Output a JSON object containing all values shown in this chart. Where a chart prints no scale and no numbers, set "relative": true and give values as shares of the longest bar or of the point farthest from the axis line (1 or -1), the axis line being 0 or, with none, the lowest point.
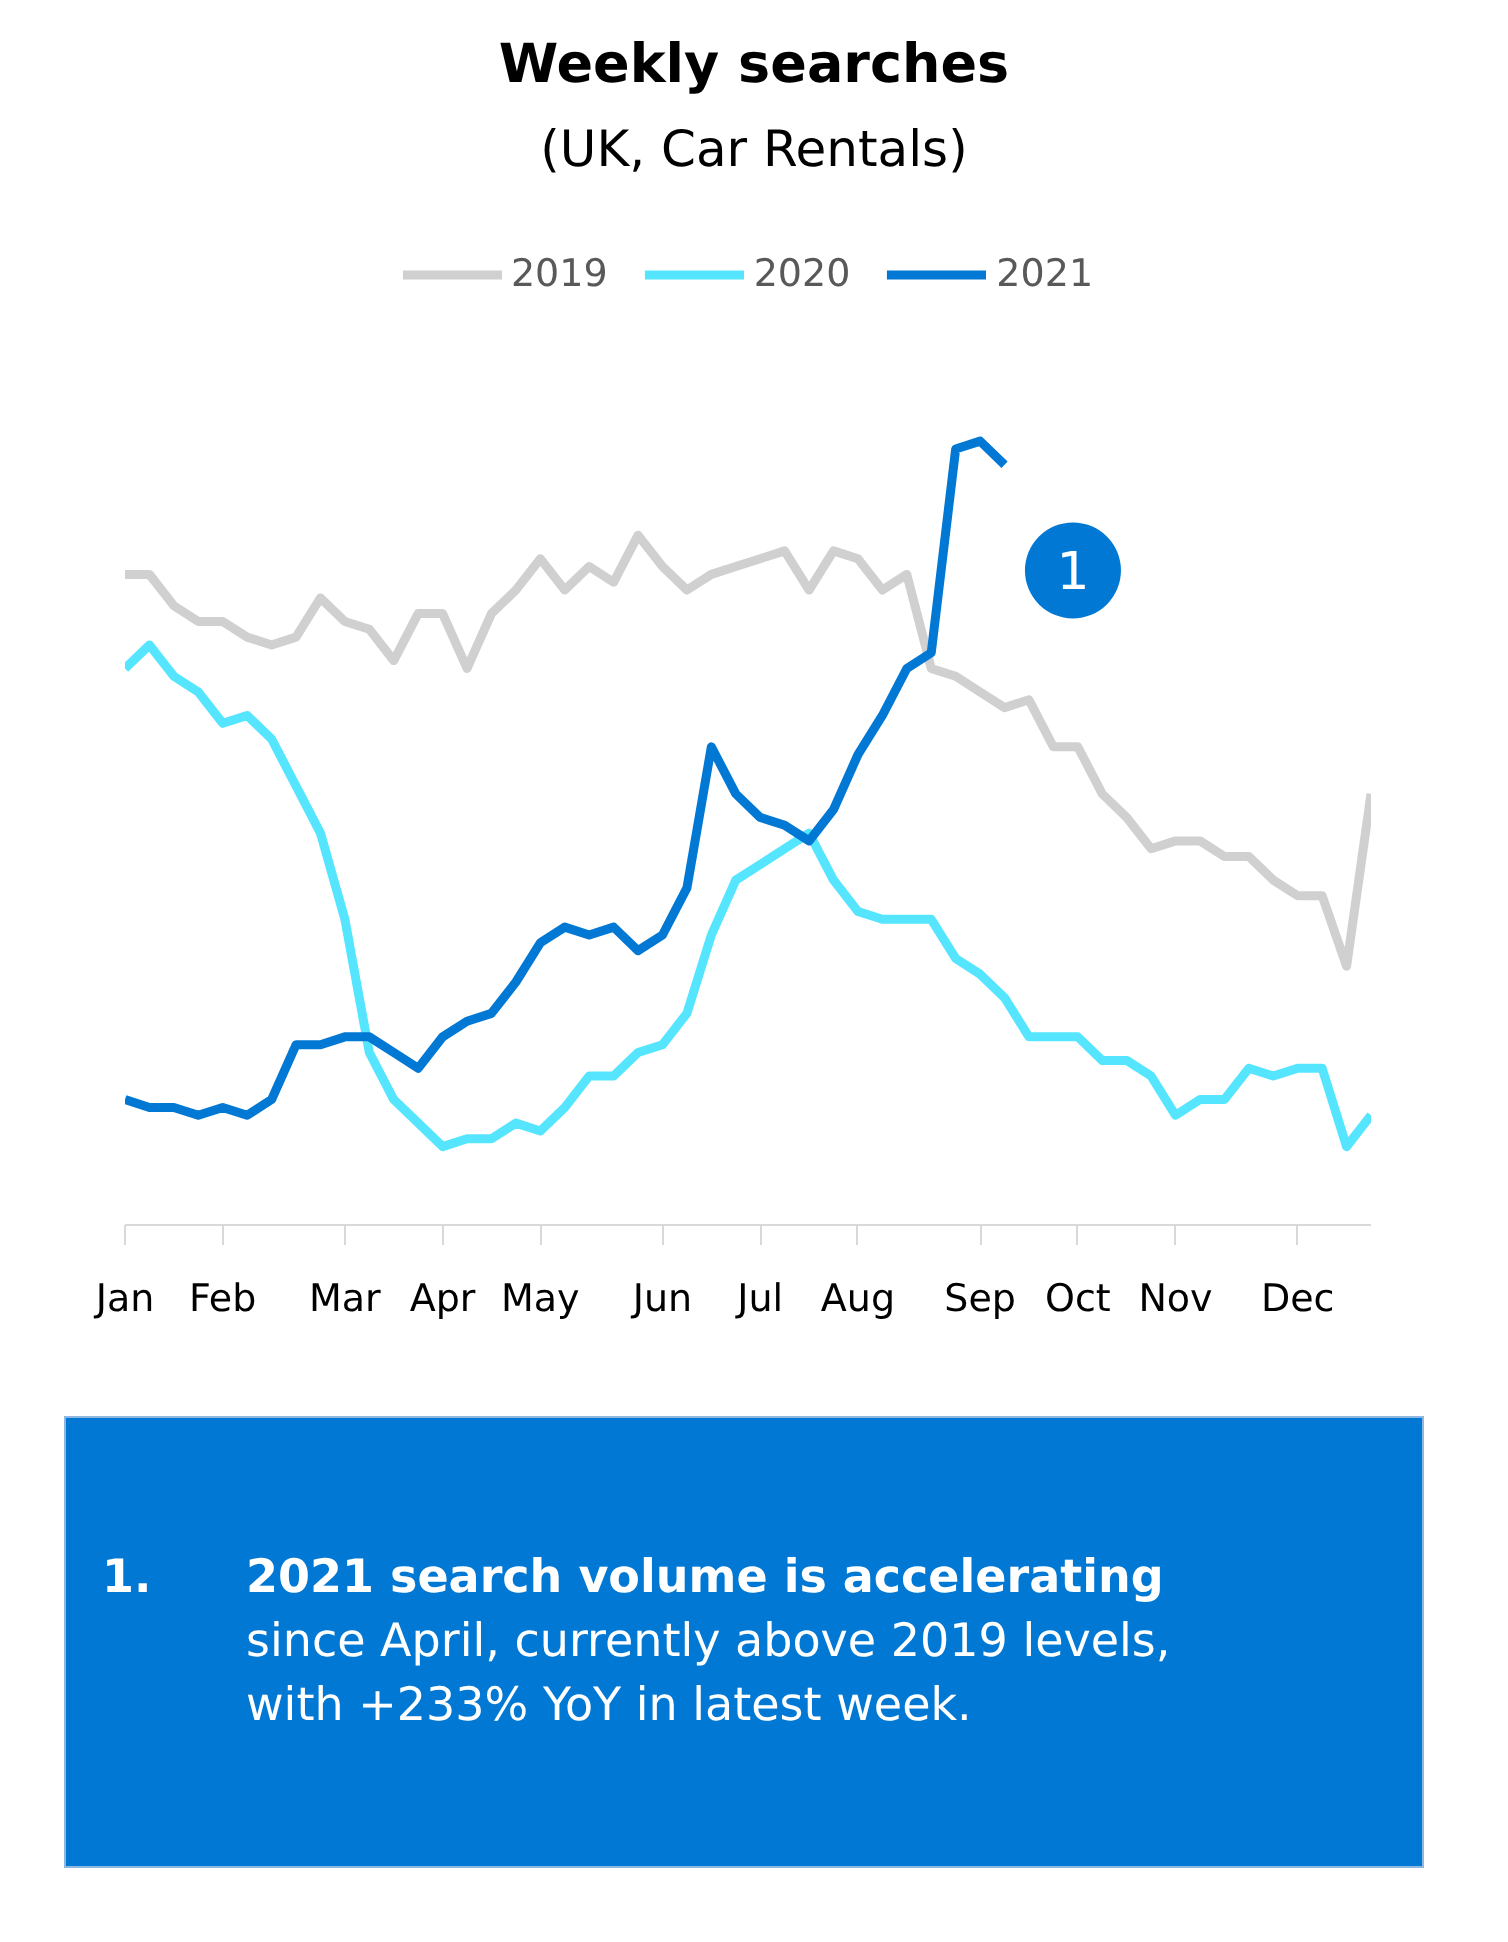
{
  "chart_data": {
    "type": "line",
    "title": "Weekly searches",
    "subtitle": "(UK, Car Rentals)",
    "relative": true,
    "legend": "top",
    "grid": false,
    "categories": [
      "Jan",
      null,
      null,
      null,
      "Feb",
      null,
      null,
      null,
      null,
      "Mar",
      null,
      null,
      null,
      "Apr",
      null,
      null,
      null,
      "May",
      null,
      null,
      null,
      null,
      "Jun",
      null,
      null,
      null,
      "Jul",
      null,
      null,
      null,
      "Aug",
      null,
      null,
      null,
      null,
      "Sep",
      null,
      null,
      null,
      "Oct",
      null,
      null,
      null,
      "Nov",
      null,
      null,
      null,
      null,
      "Dec",
      null,
      null,
      null
    ],
    "series": [
      {
        "name": "2019",
        "color": "#d0d0d0",
        "values": [
          0.83,
          0.83,
          0.79,
          0.77,
          0.77,
          0.75,
          0.74,
          0.75,
          0.8,
          0.77,
          0.76,
          0.72,
          0.78,
          0.78,
          0.71,
          0.78,
          0.81,
          0.85,
          0.81,
          0.84,
          0.82,
          0.88,
          0.84,
          0.81,
          0.83,
          0.84,
          0.85,
          0.86,
          0.81,
          0.86,
          0.85,
          0.81,
          0.83,
          0.71,
          0.7,
          0.68,
          0.66,
          0.67,
          0.61,
          0.61,
          0.55,
          0.52,
          0.48,
          0.49,
          0.49,
          0.47,
          0.47,
          0.44,
          0.42,
          0.42,
          0.33,
          0.55
        ]
      },
      {
        "name": "2020",
        "color": "#55e5ff",
        "values": [
          0.71,
          0.74,
          0.7,
          0.68,
          0.64,
          0.65,
          0.62,
          0.56,
          0.5,
          0.39,
          0.22,
          0.16,
          0.13,
          0.1,
          0.11,
          0.11,
          0.13,
          0.12,
          0.15,
          0.19,
          0.19,
          0.22,
          0.23,
          0.27,
          0.37,
          0.44,
          0.46,
          0.48,
          0.5,
          0.44,
          0.4,
          0.39,
          0.39,
          0.39,
          0.34,
          0.32,
          0.29,
          0.24,
          0.24,
          0.24,
          0.21,
          0.21,
          0.19,
          0.14,
          0.16,
          0.16,
          0.2,
          0.19,
          0.2,
          0.2,
          0.1,
          0.14
        ]
      },
      {
        "name": "2021",
        "color": "#0078d4",
        "values": [
          0.16,
          0.15,
          0.15,
          0.14,
          0.15,
          0.14,
          0.16,
          0.23,
          0.23,
          0.24,
          0.24,
          0.22,
          0.2,
          0.24,
          0.26,
          0.27,
          0.31,
          0.36,
          0.38,
          0.37,
          0.38,
          0.35,
          0.37,
          0.43,
          0.61,
          0.55,
          0.52,
          0.51,
          0.49,
          0.53,
          0.6,
          0.65,
          0.71,
          0.73,
          0.99,
          1,
          0.97,
          null,
          null,
          null,
          null,
          null,
          null,
          null,
          null,
          null,
          null,
          null,
          null,
          null,
          null,
          null
        ]
      }
    ],
    "annotations": [
      "1",
      "1.",
      "2021 search volume is accelerating\nsince April, currently above 2019 levels,\nwith +233% YoY in latest week."
    ]
  }
}
